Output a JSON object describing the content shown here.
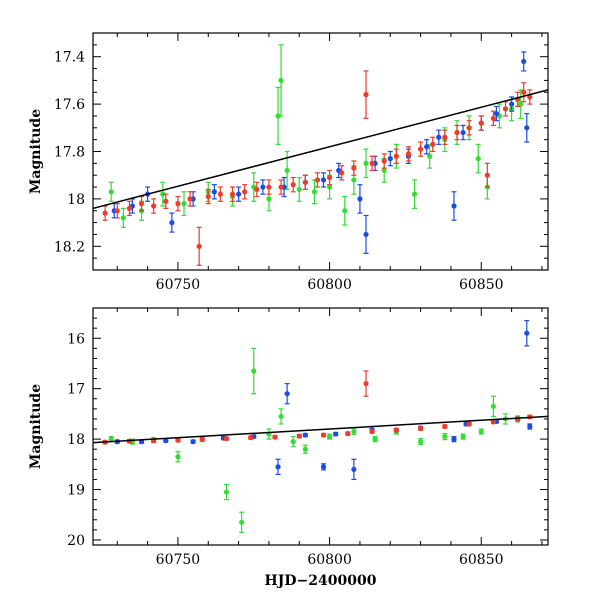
{
  "chart_data": [
    {
      "type": "scatter",
      "panel": "top",
      "xlabel": "",
      "ylabel": "Magnitude",
      "xlim": [
        60722,
        60872
      ],
      "ylim": [
        18.3,
        17.3
      ],
      "y_inverted": true,
      "xticks": [
        60750,
        60800,
        60850
      ],
      "xtick_labels": [
        "60750",
        "60800",
        "60850"
      ],
      "yticks": [
        17.4,
        17.6,
        17.8,
        18.0,
        18.2
      ],
      "ytick_labels": [
        "17.4",
        "17.6",
        "17.8",
        "18",
        "18.2"
      ],
      "fit_line": {
        "color": "#000000",
        "x": [
          60722,
          60872
        ],
        "y": [
          18.04,
          17.54
        ]
      },
      "series": [
        {
          "color": "#33dd33",
          "points": [
            [
              60728,
              17.97,
              0.04
            ],
            [
              60732,
              18.08,
              0.04
            ],
            [
              60738,
              18.05,
              0.04
            ],
            [
              60745,
              17.98,
              0.05
            ],
            [
              60752,
              18.02,
              0.05
            ],
            [
              60760,
              17.97,
              0.04
            ],
            [
              60768,
              17.99,
              0.04
            ],
            [
              60775,
              17.95,
              0.06
            ],
            [
              60780,
              18.0,
              0.05
            ],
            [
              60783,
              17.65,
              0.12
            ],
            [
              60784,
              17.5,
              0.15
            ],
            [
              60786,
              17.88,
              0.08
            ],
            [
              60790,
              17.96,
              0.05
            ],
            [
              60795,
              17.97,
              0.05
            ],
            [
              60800,
              17.95,
              0.05
            ],
            [
              60805,
              18.05,
              0.06
            ],
            [
              60808,
              17.92,
              0.06
            ],
            [
              60812,
              17.85,
              0.06
            ],
            [
              60818,
              17.88,
              0.05
            ],
            [
              60822,
              17.82,
              0.05
            ],
            [
              60828,
              17.98,
              0.06
            ],
            [
              60833,
              17.82,
              0.05
            ],
            [
              60838,
              17.75,
              0.05
            ],
            [
              60842,
              17.72,
              0.05
            ],
            [
              60846,
              17.7,
              0.05
            ],
            [
              60849,
              17.83,
              0.06
            ],
            [
              60852,
              17.95,
              0.05
            ],
            [
              60856,
              17.65,
              0.05
            ],
            [
              60860,
              17.62,
              0.05
            ],
            [
              60863,
              17.6,
              0.06
            ]
          ]
        },
        {
          "color": "#1a4ce8",
          "points": [
            [
              60729,
              18.05,
              0.03
            ],
            [
              60735,
              18.03,
              0.03
            ],
            [
              60740,
              17.98,
              0.03
            ],
            [
              60748,
              18.1,
              0.04
            ],
            [
              60755,
              18.0,
              0.03
            ],
            [
              60762,
              17.97,
              0.03
            ],
            [
              60770,
              17.98,
              0.03
            ],
            [
              60778,
              17.95,
              0.03
            ],
            [
              60785,
              17.95,
              0.04
            ],
            [
              60792,
              17.93,
              0.03
            ],
            [
              60798,
              17.92,
              0.03
            ],
            [
              60803,
              17.88,
              0.03
            ],
            [
              60810,
              18.0,
              0.06
            ],
            [
              60812,
              18.15,
              0.08
            ],
            [
              60815,
              17.85,
              0.03
            ],
            [
              60820,
              17.83,
              0.03
            ],
            [
              60826,
              17.82,
              0.03
            ],
            [
              60832,
              17.78,
              0.03
            ],
            [
              60836,
              17.74,
              0.03
            ],
            [
              60841,
              18.03,
              0.06
            ],
            [
              60844,
              17.72,
              0.03
            ],
            [
              60850,
              17.68,
              0.03
            ],
            [
              60855,
              17.64,
              0.03
            ],
            [
              60860,
              17.6,
              0.03
            ],
            [
              60864,
              17.42,
              0.04
            ],
            [
              60865,
              17.7,
              0.06
            ]
          ]
        },
        {
          "color": "#f03a2a",
          "points": [
            [
              60726,
              18.06,
              0.03
            ],
            [
              60730,
              18.05,
              0.03
            ],
            [
              60734,
              18.04,
              0.03
            ],
            [
              60738,
              18.02,
              0.03
            ],
            [
              60742,
              18.03,
              0.03
            ],
            [
              60746,
              18.01,
              0.03
            ],
            [
              60750,
              18.02,
              0.03
            ],
            [
              60754,
              18.0,
              0.03
            ],
            [
              60757,
              18.2,
              0.08
            ],
            [
              60760,
              17.99,
              0.03
            ],
            [
              60764,
              17.98,
              0.03
            ],
            [
              60768,
              17.98,
              0.03
            ],
            [
              60772,
              17.97,
              0.03
            ],
            [
              60776,
              17.96,
              0.03
            ],
            [
              60780,
              17.95,
              0.03
            ],
            [
              60784,
              17.95,
              0.03
            ],
            [
              60788,
              17.94,
              0.03
            ],
            [
              60792,
              17.93,
              0.03
            ],
            [
              60796,
              17.92,
              0.03
            ],
            [
              60800,
              17.91,
              0.03
            ],
            [
              60804,
              17.89,
              0.03
            ],
            [
              60808,
              17.87,
              0.03
            ],
            [
              60812,
              17.56,
              0.1
            ],
            [
              60814,
              17.85,
              0.03
            ],
            [
              60818,
              17.84,
              0.03
            ],
            [
              60822,
              17.82,
              0.03
            ],
            [
              60826,
              17.81,
              0.03
            ],
            [
              60830,
              17.79,
              0.03
            ],
            [
              60834,
              17.77,
              0.03
            ],
            [
              60838,
              17.74,
              0.03
            ],
            [
              60842,
              17.72,
              0.03
            ],
            [
              60846,
              17.7,
              0.03
            ],
            [
              60850,
              17.68,
              0.03
            ],
            [
              60852,
              17.9,
              0.05
            ],
            [
              60854,
              17.66,
              0.03
            ],
            [
              60858,
              17.62,
              0.03
            ],
            [
              60862,
              17.58,
              0.03
            ],
            [
              60864,
              17.55,
              0.04
            ],
            [
              60866,
              17.57,
              0.03
            ]
          ]
        }
      ]
    },
    {
      "type": "scatter",
      "panel": "bottom",
      "xlabel": "HJD−2400000",
      "ylabel": "Magnitude",
      "xlim": [
        60722,
        60872
      ],
      "ylim": [
        20.1,
        15.4
      ],
      "y_inverted": true,
      "xticks": [
        60750,
        60800,
        60850
      ],
      "xtick_labels": [
        "60750",
        "60800",
        "60850"
      ],
      "yticks": [
        16,
        17,
        18,
        19,
        20
      ],
      "ytick_labels": [
        "16",
        "17",
        "18",
        "19",
        "20"
      ],
      "fit_line": {
        "color": "#000000",
        "x": [
          60722,
          60872
        ],
        "y": [
          18.07,
          17.55
        ]
      },
      "series": [
        {
          "color": "#33dd33",
          "points": [
            [
              60728,
              18.0,
              0.05
            ],
            [
              60735,
              18.05,
              0.05
            ],
            [
              60742,
              18.02,
              0.05
            ],
            [
              60750,
              18.35,
              0.1
            ],
            [
              60758,
              18.0,
              0.05
            ],
            [
              60766,
              19.05,
              0.15
            ],
            [
              60771,
              19.65,
              0.2
            ],
            [
              60775,
              16.65,
              0.45
            ],
            [
              60780,
              17.9,
              0.1
            ],
            [
              60784,
              17.55,
              0.15
            ],
            [
              60788,
              18.05,
              0.1
            ],
            [
              60792,
              18.2,
              0.08
            ],
            [
              60800,
              17.95,
              0.05
            ],
            [
              60808,
              17.85,
              0.06
            ],
            [
              60815,
              18.0,
              0.05
            ],
            [
              60822,
              17.85,
              0.05
            ],
            [
              60830,
              18.05,
              0.06
            ],
            [
              60838,
              17.95,
              0.06
            ],
            [
              60844,
              17.95,
              0.05
            ],
            [
              60850,
              17.85,
              0.05
            ],
            [
              60854,
              17.35,
              0.2
            ],
            [
              60858,
              17.6,
              0.1
            ],
            [
              60862,
              17.6,
              0.06
            ]
          ]
        },
        {
          "color": "#1a4ce8",
          "points": [
            [
              60730,
              18.05,
              0.03
            ],
            [
              60738,
              18.05,
              0.03
            ],
            [
              60746,
              18.03,
              0.03
            ],
            [
              60755,
              18.05,
              0.03
            ],
            [
              60765,
              17.98,
              0.03
            ],
            [
              60775,
              17.95,
              0.03
            ],
            [
              60783,
              18.55,
              0.15
            ],
            [
              60786,
              17.1,
              0.2
            ],
            [
              60792,
              17.92,
              0.03
            ],
            [
              60798,
              18.55,
              0.06
            ],
            [
              60802,
              17.9,
              0.03
            ],
            [
              60808,
              18.6,
              0.2
            ],
            [
              60814,
              17.82,
              0.03
            ],
            [
              60822,
              17.82,
              0.03
            ],
            [
              60830,
              17.78,
              0.03
            ],
            [
              60841,
              18.0,
              0.05
            ],
            [
              60845,
              17.7,
              0.03
            ],
            [
              60855,
              17.65,
              0.03
            ],
            [
              60862,
              17.6,
              0.03
            ],
            [
              60865,
              15.9,
              0.25
            ],
            [
              60866,
              17.75,
              0.05
            ]
          ]
        },
        {
          "color": "#f03a2a",
          "points": [
            [
              60726,
              18.06,
              0.03
            ],
            [
              60734,
              18.04,
              0.03
            ],
            [
              60742,
              18.03,
              0.03
            ],
            [
              60750,
              18.02,
              0.03
            ],
            [
              60758,
              18.0,
              0.03
            ],
            [
              60766,
              17.99,
              0.03
            ],
            [
              60774,
              17.97,
              0.03
            ],
            [
              60782,
              17.96,
              0.03
            ],
            [
              60790,
              17.94,
              0.03
            ],
            [
              60798,
              17.92,
              0.03
            ],
            [
              60806,
              17.89,
              0.03
            ],
            [
              60812,
              16.9,
              0.25
            ],
            [
              60814,
              17.85,
              0.03
            ],
            [
              60822,
              17.82,
              0.03
            ],
            [
              60830,
              17.79,
              0.03
            ],
            [
              60838,
              17.75,
              0.03
            ],
            [
              60846,
              17.7,
              0.03
            ],
            [
              60854,
              17.66,
              0.03
            ],
            [
              60862,
              17.6,
              0.03
            ],
            [
              60866,
              17.56,
              0.03
            ]
          ]
        }
      ]
    }
  ]
}
